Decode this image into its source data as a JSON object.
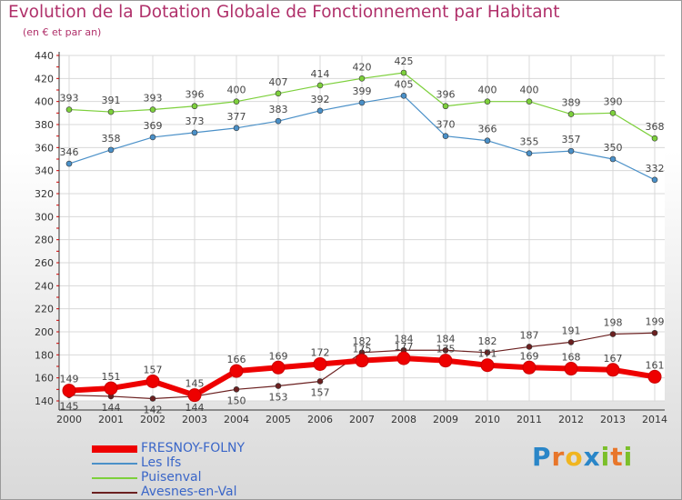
{
  "header": {
    "title": "Evolution de la Dotation Globale de Fonctionnement par Habitant",
    "subtitle": "(en € et par an)"
  },
  "brand": {
    "text": "Proxiti",
    "letters": [
      "P",
      "r",
      "o",
      "x",
      "i",
      "t",
      "i"
    ]
  },
  "chart_data": {
    "type": "line",
    "title": "Evolution de la Dotation Globale de Fonctionnement par Habitant",
    "subtitle": "(en € et par an)",
    "xlabel": "",
    "ylabel": "",
    "ylim": [
      140,
      440
    ],
    "yticks": [
      140,
      160,
      180,
      200,
      220,
      240,
      260,
      280,
      300,
      320,
      340,
      360,
      380,
      400,
      420,
      440
    ],
    "grid": true,
    "legend_position": "bottom-left",
    "x": [
      "2000",
      "2001",
      "2002",
      "2003",
      "2004",
      "2005",
      "2006",
      "2007",
      "2008",
      "2009",
      "2010",
      "2011",
      "2012",
      "2013",
      "2014"
    ],
    "series": [
      {
        "name": "FRESNOY-FOLNY",
        "color": "#ee0000",
        "values": [
          149,
          151,
          157,
          145,
          166,
          169,
          172,
          175,
          177,
          175,
          171,
          169,
          168,
          167,
          161
        ]
      },
      {
        "name": "Les Ifs",
        "color": "#4a90c8",
        "values": [
          346,
          358,
          369,
          373,
          377,
          383,
          392,
          399,
          405,
          370,
          366,
          355,
          357,
          350,
          332
        ]
      },
      {
        "name": "Puisenval",
        "color": "#7dd03c",
        "values": [
          393,
          391,
          393,
          396,
          400,
          407,
          414,
          420,
          425,
          396,
          400,
          400,
          389,
          390,
          368
        ]
      },
      {
        "name": "Avesnes-en-Val",
        "color": "#6b2020",
        "values": [
          145,
          144,
          142,
          144,
          150,
          153,
          157,
          182,
          184,
          184,
          182,
          187,
          191,
          198,
          199
        ]
      }
    ]
  }
}
